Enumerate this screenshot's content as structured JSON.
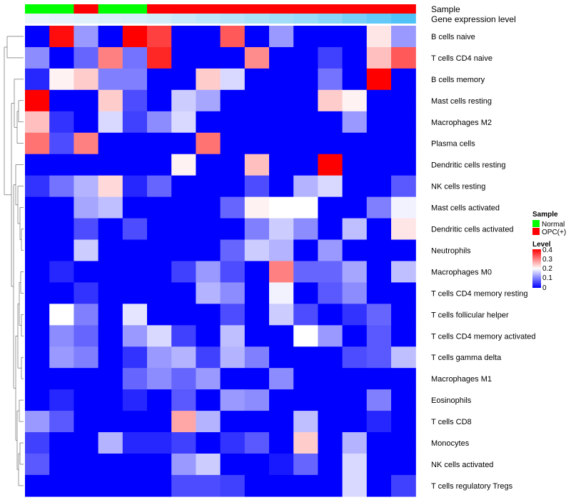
{
  "chart_data": {
    "type": "heatmap",
    "annotation_labels": [
      "Sample",
      "Gene expression level"
    ],
    "rows": [
      "B cells naive",
      "T cells CD4 naive",
      "B cells memory",
      "Mast cells resting",
      "Macrophages M2",
      "Plasma cells",
      "Dendritic cells resting",
      "NK cells resting",
      "Mast cells activated",
      "Dendritic cells activated",
      "Neutrophils",
      "Macrophages M0",
      "T cells CD4 memory resting",
      "T cells follicular helper",
      "T cells CD4 memory activated",
      "T cells gamma delta",
      "Macrophages M1",
      "Eosinophils",
      "T cells CD8",
      "Monocytes",
      "NK cells activated",
      "T cells regulatory  Tregs"
    ],
    "sample_groups": [
      "Normal",
      "Normal",
      "OPC(+)",
      "Normal",
      "Normal",
      "OPC(+)",
      "OPC(+)",
      "OPC(+)",
      "OPC(+)",
      "OPC(+)",
      "OPC(+)",
      "OPC(+)",
      "OPC(+)",
      "OPC(+)",
      "OPC(+)",
      "OPC(+)"
    ],
    "gene_expression_level": [
      0.02,
      0.04,
      0.06,
      0.08,
      0.1,
      0.12,
      0.16,
      0.2,
      0.24,
      0.28,
      0.32,
      0.36,
      0.42,
      0.5,
      0.58,
      0.66
    ],
    "values": [
      [
        0.0,
        0.39,
        0.12,
        0.0,
        0.4,
        0.35,
        0.0,
        0.0,
        0.33,
        0.0,
        0.12,
        0.0,
        0.0,
        0.0,
        0.22,
        0.12
      ],
      [
        0.11,
        0.0,
        0.08,
        0.3,
        0.09,
        0.37,
        0.0,
        0.0,
        0.0,
        0.29,
        0.0,
        0.0,
        0.05,
        0.0,
        0.25,
        0.33
      ],
      [
        0.03,
        0.21,
        0.24,
        0.1,
        0.1,
        0.0,
        0.0,
        0.24,
        0.17,
        0.0,
        0.0,
        0.0,
        0.09,
        0.0,
        0.42,
        0.0
      ],
      [
        0.4,
        0.0,
        0.0,
        0.24,
        0.06,
        0.0,
        0.16,
        0.13,
        0.0,
        0.0,
        0.0,
        0.0,
        0.24,
        0.21,
        0.0,
        0.0
      ],
      [
        0.25,
        0.04,
        0.0,
        0.17,
        0.05,
        0.11,
        0.17,
        0.0,
        0.0,
        0.0,
        0.0,
        0.0,
        0.0,
        0.12,
        0.0,
        0.0
      ],
      [
        0.31,
        0.06,
        0.3,
        0.0,
        0.0,
        0.0,
        0.0,
        0.31,
        0.0,
        0.0,
        0.0,
        0.0,
        0.0,
        0.0,
        0.0,
        0.0
      ],
      [
        0.0,
        0.0,
        0.0,
        0.0,
        0.0,
        0.0,
        0.21,
        0.0,
        0.0,
        0.25,
        0.0,
        0.0,
        0.4,
        0.0,
        0.0,
        0.0
      ],
      [
        0.04,
        0.09,
        0.14,
        0.23,
        0.03,
        0.08,
        0.0,
        0.0,
        0.0,
        0.06,
        0.0,
        0.14,
        0.17,
        0.0,
        0.0,
        0.07
      ],
      [
        0.0,
        0.0,
        0.13,
        0.15,
        0.0,
        0.0,
        0.0,
        0.0,
        0.08,
        0.21,
        0.2,
        0.2,
        0.0,
        0.0,
        0.1,
        0.19
      ],
      [
        0.0,
        0.0,
        0.06,
        0.0,
        0.06,
        0.0,
        0.0,
        0.0,
        0.0,
        0.1,
        0.16,
        0.11,
        0.0,
        0.15,
        0.0,
        0.22
      ],
      [
        0.0,
        0.0,
        0.16,
        0.0,
        0.0,
        0.0,
        0.0,
        0.0,
        0.08,
        0.16,
        0.14,
        0.0,
        0.12,
        0.0,
        0.0,
        0.0
      ],
      [
        0.0,
        0.03,
        0.0,
        0.0,
        0.0,
        0.0,
        0.05,
        0.12,
        0.06,
        0.0,
        0.3,
        0.08,
        0.08,
        0.13,
        0.0,
        0.15
      ],
      [
        0.0,
        0.0,
        0.04,
        0.0,
        0.0,
        0.0,
        0.0,
        0.14,
        0.11,
        0.0,
        0.19,
        0.0,
        0.07,
        0.11,
        0.0,
        0.0
      ],
      [
        0.0,
        0.2,
        0.1,
        0.0,
        0.18,
        0.0,
        0.0,
        0.0,
        0.06,
        0.0,
        0.16,
        0.06,
        0.0,
        0.04,
        0.08,
        0.0
      ],
      [
        0.0,
        0.11,
        0.08,
        0.0,
        0.12,
        0.17,
        0.05,
        0.0,
        0.15,
        0.0,
        0.0,
        0.2,
        0.12,
        0.0,
        0.07,
        0.0
      ],
      [
        0.0,
        0.12,
        0.1,
        0.0,
        0.04,
        0.12,
        0.14,
        0.05,
        0.14,
        0.1,
        0.0,
        0.0,
        0.0,
        0.06,
        0.07,
        0.15
      ],
      [
        0.0,
        0.0,
        0.0,
        0.0,
        0.08,
        0.11,
        0.08,
        0.12,
        0.0,
        0.0,
        0.11,
        0.0,
        0.0,
        0.0,
        0.0,
        0.0
      ],
      [
        0.0,
        0.03,
        0.0,
        0.0,
        0.03,
        0.0,
        0.07,
        0.0,
        0.12,
        0.11,
        0.0,
        0.0,
        0.0,
        0.0,
        0.1,
        0.0
      ],
      [
        0.12,
        0.07,
        0.0,
        0.0,
        0.0,
        0.0,
        0.27,
        0.14,
        0.0,
        0.0,
        0.0,
        0.15,
        0.0,
        0.0,
        0.03,
        0.0
      ],
      [
        0.05,
        0.0,
        0.0,
        0.14,
        0.03,
        0.03,
        0.05,
        0.0,
        0.04,
        0.07,
        0.0,
        0.24,
        0.0,
        0.14,
        0.0,
        0.0
      ],
      [
        0.07,
        0.0,
        0.0,
        0.0,
        0.0,
        0.0,
        0.12,
        0.16,
        0.0,
        0.0,
        0.02,
        0.08,
        0.0,
        0.17,
        0.0,
        0.0
      ],
      [
        0.0,
        0.0,
        0.0,
        0.0,
        0.0,
        0.0,
        0.06,
        0.06,
        0.05,
        0.0,
        0.0,
        0.0,
        0.0,
        0.17,
        0.0,
        0.05
      ]
    ],
    "color_scale": {
      "low": "#0000ff",
      "mid": "#ffffff",
      "high": "#ff0000",
      "range": [
        0,
        0.4
      ]
    },
    "legend": {
      "placement": "right",
      "sample_title": "Sample",
      "sample_items": [
        {
          "label": "Normal",
          "color": "#00ff00"
        },
        {
          "label": "OPC(+)",
          "color": "#ff0000"
        }
      ],
      "level_title": "Level",
      "level_ticks": [
        "0.4",
        "0.3",
        "0.2",
        "0.1",
        "0"
      ]
    },
    "annotation_colors": {
      "Normal": "#00ff00",
      "OPC(+)": "#ff0000",
      "gene_low": "#eaf4fb",
      "gene_high": "#4fc3f7"
    }
  }
}
